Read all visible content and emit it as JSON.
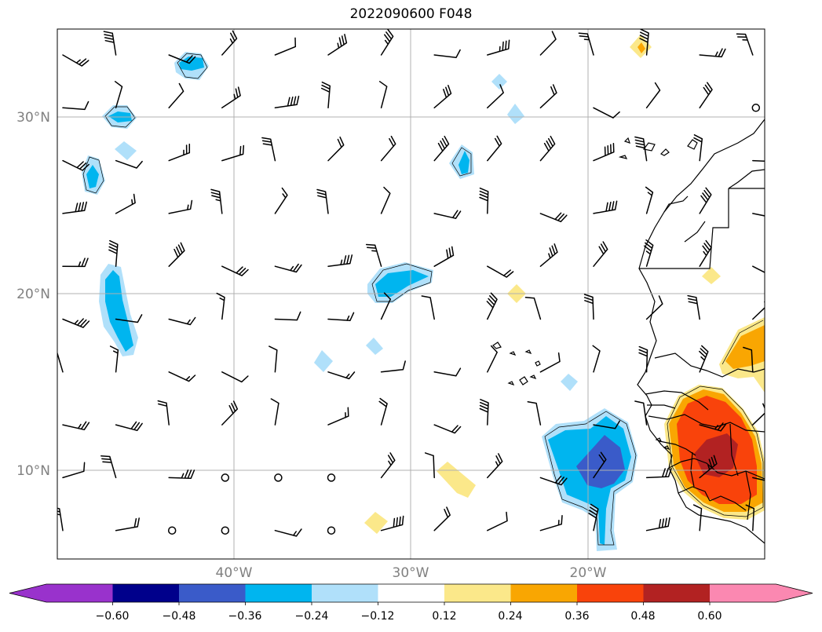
{
  "title": "2022090600 F048",
  "map": {
    "lat_labels": [
      "30°N",
      "20°N",
      "10°N"
    ],
    "lon_labels": [
      "40°W",
      "30°W",
      "20°W"
    ],
    "extent": {
      "lon_min": -50,
      "lon_max": -10,
      "lat_min": 5,
      "lat_max": 35
    }
  },
  "colorbar": {
    "tick_labels": [
      "−0.60",
      "−0.48",
      "−0.36",
      "−0.24",
      "−0.12",
      "0.12",
      "0.24",
      "0.36",
      "0.48",
      "0.60"
    ],
    "colors": [
      "#9932cc",
      "#00008b",
      "#3a5bc9",
      "#00b5ef",
      "#b0e0fa",
      "#ffffff",
      "#fbe88a",
      "#f9a602",
      "#f9430b",
      "#b22222",
      "#fb88b1"
    ]
  }
}
